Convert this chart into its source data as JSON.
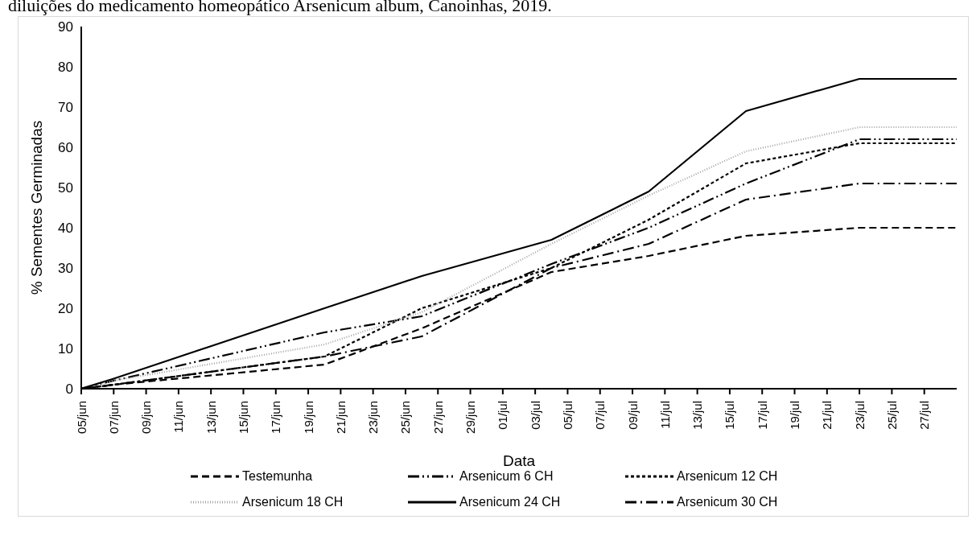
{
  "chart_data": {
    "type": "line",
    "title": "diluições do medicamento homeopático Arsenicum album, Canoinhas, 2019.",
    "xlabel": "Data",
    "ylabel": "% Sementes Germinadas",
    "x": [
      "--06-05",
      "--06-07",
      "--06-20",
      "--06-26",
      "--07-04",
      "--07-10",
      "--07-16",
      "--07-23",
      "--07-29"
    ],
    "series": [
      {
        "name": "Testemunha",
        "color": "#000000",
        "line_style": "dashed",
        "values": [
          0,
          1,
          6,
          15,
          29,
          33,
          38,
          40,
          40
        ]
      },
      {
        "name": "Arsenicum 6 CH",
        "color": "#000000",
        "line_style": "dashdotdot",
        "values": [
          0,
          2,
          14,
          18,
          31,
          40,
          51,
          62,
          62
        ]
      },
      {
        "name": "Arsenicum 12 CH",
        "color": "#000000",
        "line_style": "shortdash",
        "values": [
          0,
          1,
          8,
          20,
          30,
          42,
          56,
          61,
          61
        ]
      },
      {
        "name": "Arsenicum 18 CH",
        "color": "#a6a6a6",
        "line_style": "dotted",
        "values": [
          0,
          2,
          11,
          19,
          36,
          48,
          59,
          65,
          65
        ]
      },
      {
        "name": "Arsenicum 24 CH",
        "color": "#000000",
        "line_style": "solid",
        "values": [
          0,
          2.5,
          20,
          28,
          37,
          49,
          69,
          77,
          77
        ]
      },
      {
        "name": "Arsenicum 30 CH",
        "color": "#000000",
        "line_style": "dashdot",
        "values": [
          0,
          1,
          8,
          13,
          30,
          36,
          47,
          51,
          51
        ]
      }
    ],
    "xlim": [
      "--06-05",
      "--07-29"
    ],
    "xticks": [
      {
        "value": "--06-05",
        "label": "05/jun"
      },
      {
        "value": "--06-07",
        "label": "07/jun"
      },
      {
        "value": "--06-09",
        "label": "09/jun"
      },
      {
        "value": "--06-11",
        "label": "11/jun"
      },
      {
        "value": "--06-13",
        "label": "13/jun"
      },
      {
        "value": "--06-15",
        "label": "15/jun"
      },
      {
        "value": "--06-17",
        "label": "17/jun"
      },
      {
        "value": "--06-19",
        "label": "19/jun"
      },
      {
        "value": "--06-21",
        "label": "21/jun"
      },
      {
        "value": "--06-23",
        "label": "23/jun"
      },
      {
        "value": "--06-25",
        "label": "25/jun"
      },
      {
        "value": "--06-27",
        "label": "27/jun"
      },
      {
        "value": "--06-29",
        "label": "29/jun"
      },
      {
        "value": "--07-01",
        "label": "01/jul"
      },
      {
        "value": "--07-03",
        "label": "03/jul"
      },
      {
        "value": "--07-05",
        "label": "05/jul"
      },
      {
        "value": "--07-07",
        "label": "07/jul"
      },
      {
        "value": "--07-09",
        "label": "09/jul"
      },
      {
        "value": "--07-11",
        "label": "11/jul"
      },
      {
        "value": "--07-13",
        "label": "13/jul"
      },
      {
        "value": "--07-15",
        "label": "15/jul"
      },
      {
        "value": "--07-17",
        "label": "17/jul"
      },
      {
        "value": "--07-19",
        "label": "19/jul"
      },
      {
        "value": "--07-21",
        "label": "21/jul"
      },
      {
        "value": "--07-23",
        "label": "23/jul"
      },
      {
        "value": "--07-25",
        "label": "25/jul"
      },
      {
        "value": "--07-27",
        "label": "27/jul"
      }
    ],
    "ylim": [
      0,
      90
    ],
    "yticks": [
      0,
      10,
      20,
      30,
      40,
      50,
      60,
      70,
      80,
      90
    ],
    "grid": false,
    "legend": "bottom",
    "marker": "none"
  }
}
